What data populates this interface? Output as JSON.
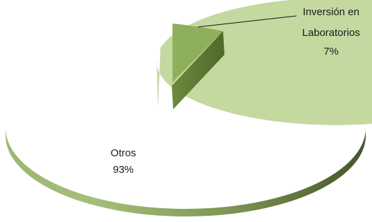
{
  "chart_data": {
    "type": "pie",
    "style": "3d-exploded",
    "title": "",
    "slices": [
      {
        "name": "Inversión en Laboratorios",
        "value": 7,
        "value_label": "7%",
        "name_lines": [
          "Inversión en",
          "Laboratorios"
        ],
        "color": "#8fb05a",
        "exploded": true
      },
      {
        "name": "Otros",
        "value": 93,
        "value_label": "93%",
        "name_lines": [
          "Otros"
        ],
        "color": "#c3d9a0",
        "exploded": false
      }
    ]
  }
}
